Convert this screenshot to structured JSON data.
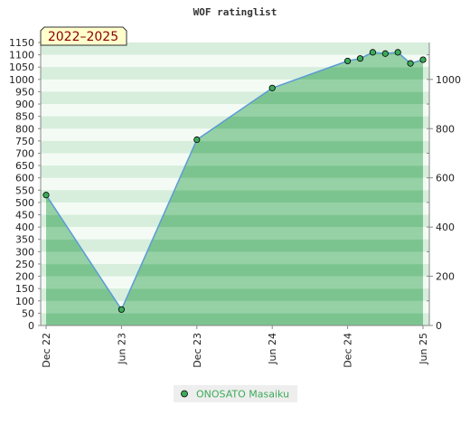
{
  "header": {
    "title": "WOF ratinglist",
    "period_badge": "2022–2025"
  },
  "colors": {
    "line": "#5b9bd5",
    "area_dark": "#7cc48f",
    "area_light": "#c6e8cf",
    "band_dark": "#d6eedb",
    "band_light": "#f4fbf5",
    "marker_fill": "#3daa5a",
    "badge_bg": "#ffffcc",
    "legend_text": "#3daa5a",
    "legend_bg": "#eeeeee"
  },
  "chart_data": {
    "type": "area",
    "title": "WOF ratinglist",
    "x_ticks": [
      "Dec 22",
      "Jun 23",
      "Dec 23",
      "Jun 24",
      "Dec 24",
      "Jun 25"
    ],
    "x_ticks_months": [
      0,
      6,
      12,
      18,
      24,
      30
    ],
    "series": [
      {
        "name": "ONOSATO Masaiku",
        "x_months": [
          0,
          6,
          12,
          18,
          24,
          25,
          26,
          27,
          28,
          29,
          30
        ],
        "values": [
          530,
          65,
          755,
          965,
          1075,
          1085,
          1110,
          1105,
          1110,
          1065,
          1080
        ]
      }
    ],
    "y_left": {
      "min": 0,
      "max": 1150,
      "step": 50,
      "ticks": [
        "0",
        "50",
        "100",
        "150",
        "200",
        "250",
        "300",
        "350",
        "400",
        "450",
        "500",
        "550",
        "600",
        "650",
        "700",
        "750",
        "800",
        "850",
        "900",
        "950",
        "1000",
        "1050",
        "1100",
        "1150"
      ]
    },
    "y_right": {
      "min": 0,
      "max": 1150,
      "ticks": [
        "0",
        "200",
        "400",
        "600",
        "800",
        "1000"
      ]
    },
    "grid": false,
    "legend": {
      "position": "bottom-center",
      "entries": [
        "ONOSATO Masaiku"
      ]
    }
  }
}
